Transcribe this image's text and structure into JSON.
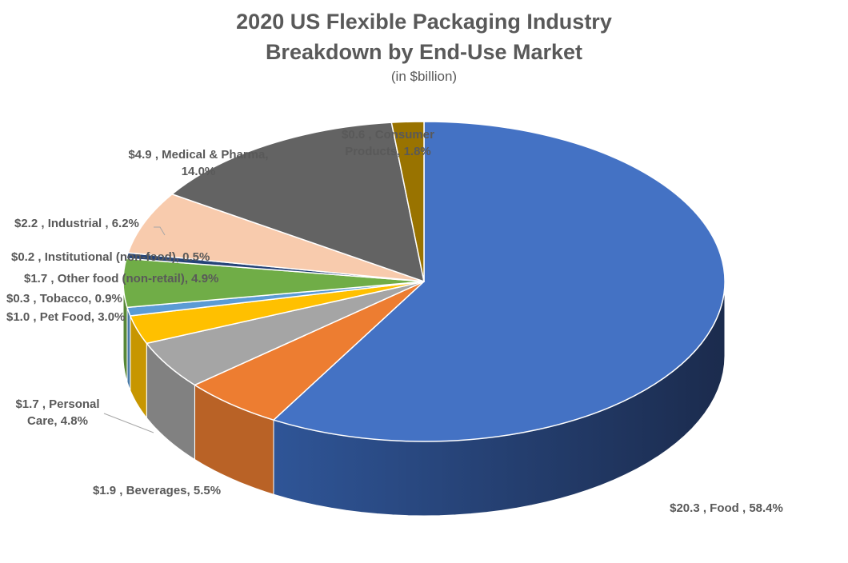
{
  "chart_data": {
    "type": "pie",
    "style": "3d",
    "title": [
      "2020 US Flexible Packaging Industry",
      "Breakdown by End-Use Market"
    ],
    "subtitle": "(in $billion)",
    "unit": "$billion",
    "slices": [
      {
        "name": "Food",
        "value": 20.3,
        "percent": 58.4,
        "color": "#4472C4",
        "label_lines": [
          "$20.3 , Food , 58.4%"
        ]
      },
      {
        "name": "Beverages",
        "value": 1.9,
        "percent": 5.5,
        "color": "#ED7D31",
        "label_lines": [
          "$1.9 , Beverages, 5.5%"
        ]
      },
      {
        "name": "Personal Care",
        "value": 1.7,
        "percent": 4.8,
        "color": "#A5A5A5",
        "label_lines": [
          "$1.7 , Personal",
          "Care, 4.8%"
        ]
      },
      {
        "name": "Pet Food",
        "value": 1.0,
        "percent": 3.0,
        "color": "#FFC000",
        "label_lines": [
          "$1.0 , Pet Food, 3.0%"
        ]
      },
      {
        "name": "Tobacco",
        "value": 0.3,
        "percent": 0.9,
        "color": "#5B9BD5",
        "label_lines": [
          "$0.3 , Tobacco, 0.9%"
        ]
      },
      {
        "name": "Other food (non-retail)",
        "value": 1.7,
        "percent": 4.9,
        "color": "#70AD47",
        "label_lines": [
          "$1.7 , Other food (non-retail), 4.9%"
        ]
      },
      {
        "name": "Institutional (non-food)",
        "value": 0.2,
        "percent": 0.5,
        "color": "#264478",
        "label_lines": [
          "$0.2 , Institutional (non-food), 0.5%"
        ]
      },
      {
        "name": "Industrial",
        "value": 2.2,
        "percent": 6.2,
        "color": "#F8CBAD",
        "label_lines": [
          "$2.2 , Industrial , 6.2%"
        ]
      },
      {
        "name": "Medical & Pharma",
        "value": 4.9,
        "percent": 14.0,
        "color": "#636363",
        "label_lines": [
          "$4.9 , Medical & Pharma,",
          "14.0%"
        ]
      },
      {
        "name": "Consumer Products",
        "value": 0.6,
        "percent": 1.8,
        "color": "#997300",
        "label_lines": [
          "$0.6 , Consumer",
          "Products, 1.8%"
        ]
      }
    ]
  }
}
